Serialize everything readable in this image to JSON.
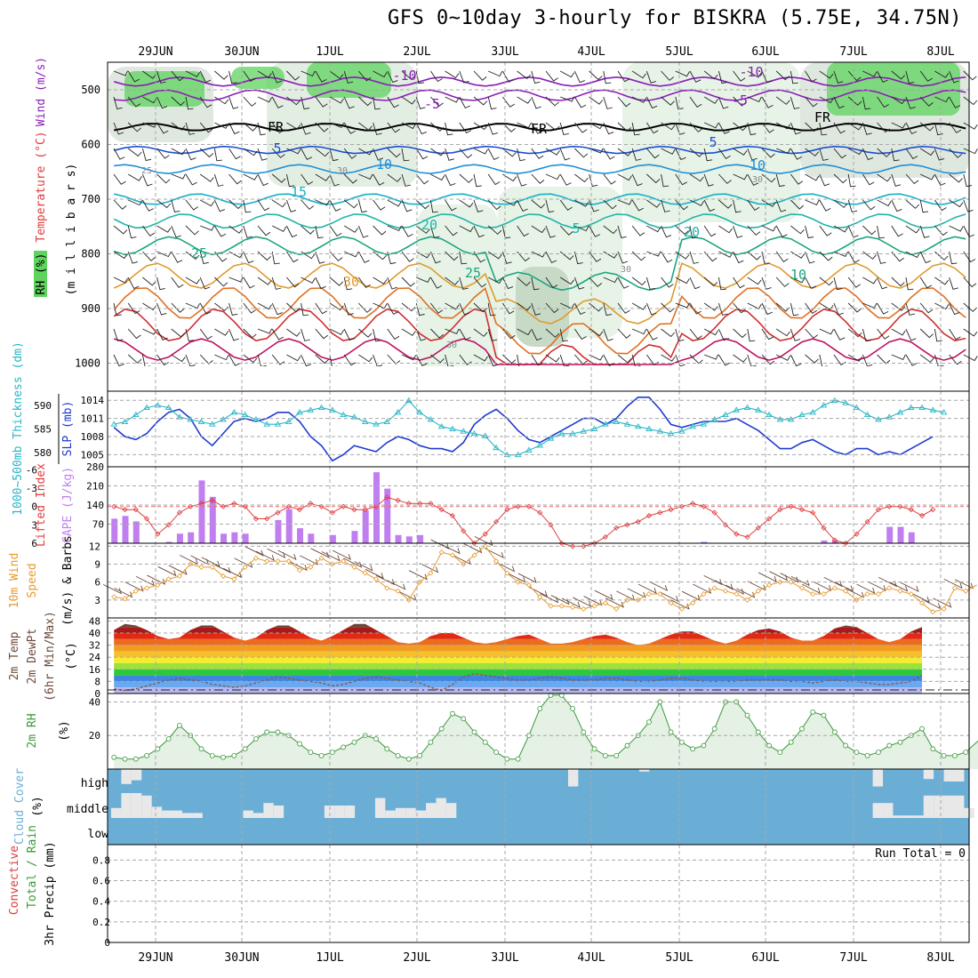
{
  "header": {
    "title": "GFS 0~10day 3-hourly for BISKRA (5.75E, 34.75N)"
  },
  "colors": {
    "rh_green": "#5ed35e",
    "rh_light": "#e6f3e6",
    "wind_purple": "#8a1fb7",
    "wind_blue": "#1a4fd4",
    "slp_blue": "#1f3bd1",
    "thickness_cyan": "#28b7c7",
    "lifted_red": "#e03b3b",
    "cape_purple": "#c07ef0",
    "wind10_orange": "#e89a2c",
    "temp_brown": "#6b4a3a",
    "cloud_blue": "#6aaed6",
    "rh2m_green": "#3d9a3d"
  },
  "chart_data": [
    {
      "panel": "upper-air",
      "type": "heatmap",
      "ylabel_parts": [
        "RH (%)",
        "Temperature (°C)",
        "Wind (m/s)",
        "(m i l l i b a r s)"
      ],
      "yticks": [
        "500",
        "600",
        "700",
        "800",
        "900",
        "1000"
      ],
      "x_date_labels": [
        "29JUN",
        "30JUN",
        "1JUL",
        "2JUL",
        "3JUL",
        "4JUL",
        "5JUL",
        "6JUL",
        "7JUL",
        "8JUL"
      ],
      "isotherm_labels": [
        "-10",
        "-5",
        "FR",
        "5",
        "10",
        "15",
        "20",
        "25",
        "30",
        "-10",
        "-5",
        "FR",
        "5",
        "10",
        "20",
        "25",
        "FR",
        "5",
        "10",
        "25",
        "30",
        "30",
        "30",
        "30"
      ]
    },
    {
      "panel": "slp-thickness",
      "type": "line",
      "ylabel_left": "1000~500mb Thickness (dm)",
      "ylabel_right": "SLP (mb)",
      "yticks_left": [
        "590",
        "585",
        "580"
      ],
      "yticks_right": [
        "1014",
        "1011",
        "1008",
        "1005"
      ],
      "ylim_slp": [
        1003,
        1015.5
      ],
      "ylim_thk": [
        577,
        593
      ],
      "series": [
        {
          "name": "SLP (mb)",
          "values": [
            1009.5,
            1008,
            1007.5,
            1008.5,
            1010.5,
            1012,
            1012.5,
            1011,
            1008,
            1006.5,
            1008.5,
            1010.5,
            1011,
            1010.5,
            1011,
            1012,
            1012,
            1010.5,
            1008,
            1006.5,
            1004,
            1005,
            1006.5,
            1006,
            1005.5,
            1007,
            1008,
            1007.5,
            1006.5,
            1006,
            1006,
            1005.5,
            1007,
            1010,
            1011.5,
            1012.5,
            1011,
            1009,
            1007.5,
            1007,
            1008,
            1009,
            1010,
            1011,
            1011,
            1010,
            1011,
            1013,
            1014.5,
            1014.5,
            1012.5,
            1010,
            1009.5,
            1010,
            1010.5,
            1010.5,
            1010.5,
            1011,
            1010,
            1009,
            1007.5,
            1006,
            1006,
            1007,
            1007.5,
            1006.5,
            1005.5,
            1005,
            1006,
            1006,
            1005,
            1005.5,
            1005,
            1006,
            1007,
            1008
          ]
        },
        {
          "name": "1000~500mb Thickness (dm)",
          "values": [
            586,
            586.5,
            588,
            589.5,
            590,
            589.5,
            587.5,
            587,
            586.5,
            586,
            587,
            588.5,
            588,
            587,
            586,
            586,
            586.5,
            588.5,
            589,
            589.5,
            589,
            588,
            587.5,
            586.5,
            586,
            586.5,
            588.5,
            591,
            588.5,
            587,
            585.5,
            585,
            584.5,
            584,
            583.5,
            581,
            579.5,
            579.5,
            580.5,
            581.5,
            583,
            584,
            584,
            584.5,
            585,
            586,
            586.5,
            586,
            585.5,
            585,
            584.5,
            584,
            584.5,
            585.5,
            586,
            587,
            588,
            589,
            589.5,
            589,
            588,
            587,
            587,
            588,
            588.5,
            590,
            591,
            590.5,
            589.5,
            588,
            587,
            587.5,
            588.5,
            589.5,
            589.5,
            589,
            588.5
          ]
        }
      ]
    },
    {
      "panel": "cape-lifted",
      "type": "bar",
      "ylabel_left": "Lifted Index",
      "ylabel_right": "CAPE (J/kg)",
      "yticks_left": [
        "-6",
        "-3",
        "0",
        "3",
        "6"
      ],
      "yticks_right": [
        "280",
        "210",
        "140",
        "70"
      ],
      "ylim_cape": [
        0,
        280
      ],
      "series": [
        {
          "name": "CAPE (J/kg)",
          "values": [
            90,
            100,
            80,
            0,
            0,
            5,
            35,
            40,
            230,
            170,
            35,
            40,
            35,
            0,
            0,
            85,
            125,
            55,
            35,
            0,
            30,
            0,
            45,
            120,
            260,
            200,
            30,
            25,
            30,
            0,
            0,
            0,
            0,
            0,
            0,
            0,
            0,
            0,
            0,
            0,
            0,
            0,
            0,
            0,
            0,
            0,
            0,
            0,
            0,
            0,
            0,
            0,
            0,
            0,
            5,
            0,
            0,
            0,
            0,
            0,
            0,
            0,
            0,
            0,
            0,
            10,
            10,
            0,
            0,
            0,
            0,
            60,
            60,
            40,
            0,
            0
          ]
        },
        {
          "name": "Lifted Index",
          "values": [
            0,
            0.5,
            0.5,
            2,
            4.5,
            3,
            1,
            0,
            -0.5,
            -1,
            0,
            -0.5,
            0,
            2,
            2,
            1,
            0,
            0.5,
            -0.5,
            0,
            1,
            0,
            0.5,
            0.5,
            0,
            -1.5,
            -1,
            -0.5,
            -0.5,
            -0.5,
            0.5,
            1.5,
            4,
            6,
            4.5,
            2.5,
            0.5,
            0,
            0,
            1,
            3,
            6,
            6.5,
            6.5,
            6,
            5,
            3.5,
            3,
            2.5,
            1.5,
            1,
            0.5,
            0,
            -0.5,
            0,
            1,
            3,
            4.5,
            5,
            3.5,
            2,
            0.5,
            0,
            0.5,
            1,
            3.5,
            5.5,
            6,
            4.5,
            2.5,
            0.5,
            0,
            0,
            0.5,
            1.5,
            0.5
          ]
        }
      ]
    },
    {
      "panel": "wind-10m",
      "type": "line",
      "ylabel": "10m Wind Speed (m/s) & Barbs",
      "yticks": [
        "12",
        "9",
        "6",
        "3"
      ],
      "ylim": [
        0,
        12.5
      ],
      "series": [
        {
          "name": "10m Wind Speed",
          "values": [
            3.5,
            3.2,
            4.5,
            5,
            5.5,
            6.5,
            7,
            9,
            8.5,
            8.5,
            7,
            6.5,
            8.5,
            10,
            9.5,
            9.5,
            9.5,
            8,
            8.5,
            10,
            9,
            9.5,
            8.5,
            7.5,
            6.5,
            5,
            4.5,
            3,
            6,
            7.5,
            11,
            10.5,
            9,
            10.5,
            12,
            9.5,
            7.5,
            6,
            5.5,
            3.5,
            2,
            2,
            1.8,
            1.5,
            2,
            2.5,
            1.5,
            3,
            3,
            4,
            4,
            2.5,
            1.5,
            2.5,
            4,
            5,
            4.5,
            4,
            3,
            4.5,
            5.5,
            6,
            6,
            5,
            4,
            4,
            5,
            4.5,
            3,
            4,
            4,
            5,
            4.5,
            4,
            2.5,
            1,
            1.5,
            5,
            4.5,
            5.5
          ]
        }
      ]
    },
    {
      "panel": "temp-2m",
      "type": "area",
      "ylabel": "2m Temp 2m DewPt (6hr Min/Max) (°C)",
      "yticks": [
        "48",
        "40",
        "32",
        "24",
        "16",
        "8",
        "0"
      ],
      "ylim": [
        0,
        50
      ],
      "series": [
        {
          "name": "2m Temp max",
          "values": [
            42,
            46,
            45,
            42,
            38,
            36,
            37,
            42,
            45,
            45,
            41,
            37,
            35,
            37,
            42,
            45,
            45,
            41,
            37,
            35,
            38,
            42,
            46,
            46,
            42,
            38,
            34,
            33,
            34,
            38,
            40,
            40,
            37,
            34,
            33,
            34,
            36,
            38,
            39,
            36,
            33,
            33,
            34,
            36,
            38,
            39,
            37,
            34,
            32,
            33,
            36,
            39,
            41,
            41,
            38,
            35,
            33,
            35,
            39,
            42,
            43,
            41,
            37,
            35,
            35,
            38,
            43,
            45,
            44,
            40,
            36,
            34,
            36,
            41,
            44
          ]
        },
        {
          "name": "2m DewPt",
          "values": [
            3,
            2,
            3,
            5,
            7,
            9,
            10,
            9,
            8,
            6,
            5,
            4,
            5,
            7,
            9,
            11,
            10,
            9,
            8,
            7,
            5,
            6,
            8,
            10,
            11,
            10,
            9,
            8,
            7,
            4,
            2,
            6,
            11,
            13,
            12,
            11,
            10,
            9,
            9,
            10,
            11,
            10,
            9,
            9,
            9,
            10,
            10,
            9,
            8,
            8,
            9,
            10,
            10,
            9,
            8,
            8,
            8,
            8,
            9,
            9,
            9,
            9,
            8,
            8,
            7,
            8,
            9,
            8,
            8,
            7,
            6,
            6,
            7,
            8,
            12
          ]
        }
      ]
    },
    {
      "panel": "rh-2m",
      "type": "area",
      "ylabel": "2m RH (%)",
      "yticks": [
        "40",
        "20"
      ],
      "ylim": [
        0,
        45
      ],
      "series": [
        {
          "name": "2m RH",
          "values": [
            7,
            6,
            6,
            8,
            12,
            18,
            26,
            20,
            12,
            8,
            7,
            8,
            12,
            18,
            22,
            22,
            20,
            15,
            10,
            8,
            10,
            13,
            16,
            20,
            18,
            12,
            8,
            6,
            8,
            16,
            24,
            33,
            30,
            22,
            16,
            10,
            6,
            6,
            20,
            36,
            44,
            44,
            36,
            22,
            12,
            8,
            8,
            14,
            20,
            28,
            40,
            22,
            16,
            12,
            14,
            24,
            40,
            40,
            32,
            22,
            14,
            10,
            16,
            24,
            34,
            32,
            22,
            14,
            10,
            8,
            10,
            14,
            16,
            20,
            24,
            12,
            8,
            8,
            10,
            16,
            22,
            26
          ]
        }
      ]
    },
    {
      "panel": "cloud-cover",
      "type": "heatmap",
      "ylabel": "Cloud Cover (%)",
      "ytick_labels": [
        "high",
        "middle",
        "low"
      ],
      "series": [
        {
          "name": "high cloud",
          "values": [
            0,
            0.6,
            0.45,
            0,
            0,
            0,
            0,
            0,
            0,
            0,
            0,
            0,
            0,
            0,
            0,
            0,
            0,
            0,
            0,
            0,
            0,
            0,
            0,
            0,
            0,
            0,
            0,
            0,
            0,
            0,
            0,
            0,
            0,
            0,
            0,
            0,
            0,
            0,
            0,
            0,
            0,
            0,
            0,
            0,
            0,
            0.7,
            0,
            0,
            0,
            0,
            0,
            0,
            0.1,
            0,
            0,
            0,
            0,
            0,
            0,
            0,
            0,
            0,
            0,
            0,
            0,
            0,
            0,
            0,
            0,
            0,
            0,
            0,
            0,
            0,
            0,
            0.7,
            0,
            0,
            0,
            0,
            0.4,
            0,
            0.5,
            0.5,
            0
          ]
        },
        {
          "name": "middle cloud",
          "values": [
            0.4,
            1,
            1,
            0.9,
            0.45,
            0.3,
            0.3,
            0.2,
            0.2,
            0,
            0,
            0,
            0,
            0.3,
            0.2,
            0.6,
            0.5,
            0,
            0,
            0,
            0,
            0.5,
            0.5,
            0.5,
            0,
            0,
            0.8,
            0.3,
            0.4,
            0.4,
            0.3,
            0.6,
            0.8,
            0.6,
            0,
            0,
            0,
            0,
            0,
            0,
            0,
            0,
            0,
            0,
            0,
            0,
            0,
            0,
            0,
            0,
            0,
            0,
            0,
            0,
            0,
            0,
            0,
            0,
            0,
            0,
            0,
            0,
            0,
            0,
            0,
            0,
            0,
            0,
            0,
            0,
            0,
            0,
            0,
            0,
            0,
            0.6,
            0.6,
            0.1,
            0.1,
            0.1,
            0.9,
            0.9,
            0.9,
            0.9,
            0.4
          ]
        }
      ]
    },
    {
      "panel": "precip",
      "type": "bar",
      "ylabel_parts": [
        "Total / Rain",
        "Convective",
        "3hr Precip (mm)"
      ],
      "yticks": [
        "0.8",
        "0.6",
        "0.4",
        "0.2",
        "0"
      ],
      "ylim": [
        0,
        0.95
      ],
      "annotation": "Run Total = 0",
      "values": []
    }
  ]
}
